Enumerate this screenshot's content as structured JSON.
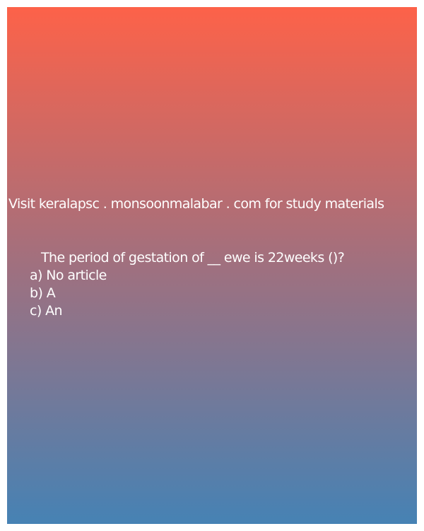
{
  "header": {
    "text": "Visit keralapsc . monsoonmalabar . com for study materials"
  },
  "question": {
    "text": "The period of gestation of __ ewe is 22weeks ()?",
    "options": [
      "a) No article",
      "b) A",
      "c) An"
    ]
  }
}
